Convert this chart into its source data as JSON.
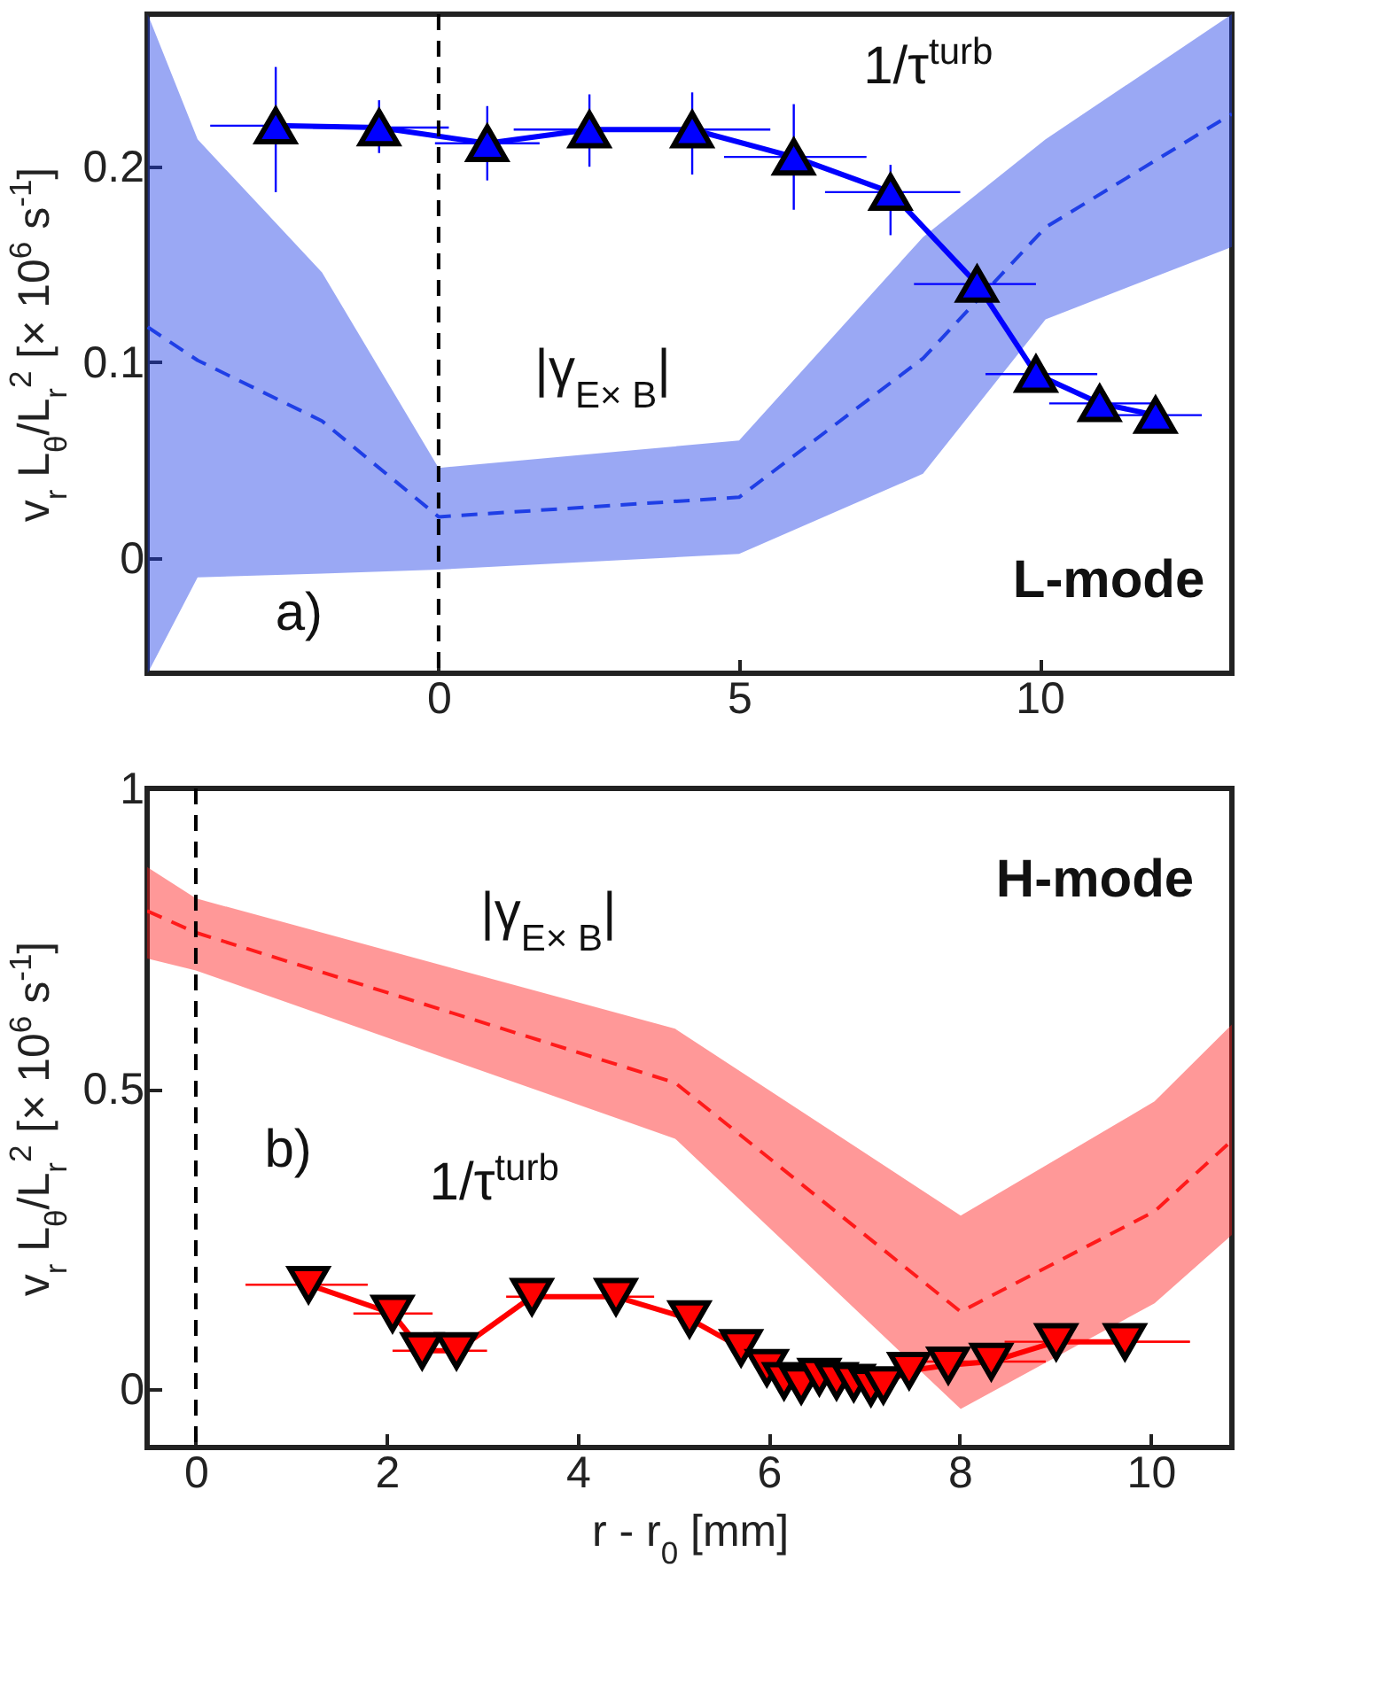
{
  "chart_data": [
    {
      "type": "line",
      "ylabel": "v$_{r}$ L$_{θ}$/L$_{r}$$^{2}$ [× 10$^{6}$ s$^{-1}$]",
      "xlim": [
        -4.85,
        13.2
      ],
      "xticks": [
        0,
        5,
        10
      ],
      "ylim": [
        -0.059,
        0.278
      ],
      "yticks": [
        0,
        0.1,
        0.2
      ],
      "grid": false,
      "annotations": [
        "a)",
        "L-mode"
      ],
      "ref_lines": [
        {
          "axis": "x",
          "value": 0,
          "color": "#000000",
          "line_style": "dashed"
        }
      ],
      "series": [
        {
          "name": "|γ$_{E× B}$|",
          "color": "#1f3fe6",
          "line_style": "dashed",
          "marker": "none",
          "x": [
            -4.84,
            -4.01,
            -1.94,
            0.0,
            5.0,
            8.06,
            10.1,
            13.2
          ],
          "values": [
            0.118,
            0.101,
            0.07,
            0.021,
            0.031,
            0.102,
            0.169,
            0.227
          ],
          "lower": [
            -0.059,
            -0.01,
            -0.008,
            -0.006,
            0.002,
            0.043,
            0.122,
            0.159
          ],
          "upper": [
            0.278,
            0.214,
            0.146,
            0.046,
            0.06,
            0.164,
            0.214,
            0.278
          ]
        },
        {
          "name": "1/τ$^{turb}$",
          "color": "#0000ff",
          "line_style": "solid",
          "marker": "triangle",
          "x": [
            -2.71,
            -0.99,
            0.81,
            2.51,
            4.22,
            5.91,
            7.52,
            8.96,
            9.94,
            11.0,
            11.93
          ],
          "values": [
            0.221,
            0.22,
            0.212,
            0.219,
            0.219,
            0.205,
            0.187,
            0.14,
            0.094,
            0.079,
            0.073
          ],
          "errors": [
            [
              0.187,
              0.251
            ],
            [
              0.207,
              0.234
            ],
            [
              0.193,
              0.231
            ],
            [
              0.2,
              0.237
            ],
            [
              0.196,
              0.238
            ],
            [
              0.178,
              0.232
            ],
            [
              0.165,
              0.201
            ],
            null,
            null,
            null,
            null
          ],
          "xerrors": [
            [
              -3.8,
              -1.65
            ],
            [
              -2.09,
              0.17
            ],
            [
              -0.06,
              1.68
            ],
            [
              1.25,
              3.71
            ],
            [
              3.13,
              5.52
            ],
            [
              4.75,
              7.12
            ],
            [
              6.43,
              8.68
            ],
            [
              7.91,
              9.94
            ],
            [
              9.1,
              10.96
            ],
            [
              10.16,
              11.86
            ],
            [
              11.25,
              12.7
            ]
          ]
        }
      ]
    },
    {
      "type": "line",
      "xlabel": "r - r$_{0}$ [mm]",
      "ylabel": "v$_{r}$ L$_{θ}$/L$_{r}$$^{2}$ [× 10$^{6}$ s$^{-1}$]",
      "xlim": [
        -0.51,
        10.85
      ],
      "xticks": [
        0,
        2,
        4,
        6,
        8,
        10
      ],
      "ylim": [
        -0.097,
        1
      ],
      "yticks": [
        0,
        0.5,
        1
      ],
      "grid": false,
      "annotations": [
        "b)",
        "H-mode"
      ],
      "ref_lines": [
        {
          "axis": "x",
          "value": 0,
          "color": "#000000",
          "line_style": "dashed"
        }
      ],
      "series": [
        {
          "name": "|γ$_{E× B}$|",
          "color": "#ff1a1a",
          "line_style": "dashed",
          "marker": "none",
          "x": [
            -0.51,
            0.0,
            5.02,
            8.01,
            10.04,
            10.85
          ],
          "values": [
            0.796,
            0.76,
            0.51,
            0.129,
            0.296,
            0.414
          ],
          "lower": [
            0.717,
            0.697,
            0.417,
            -0.033,
            0.143,
            0.257
          ],
          "upper": [
            0.869,
            0.817,
            0.6,
            0.289,
            0.479,
            0.607
          ]
        },
        {
          "name": "1/τ$^{turb}$",
          "color": "#ff0000",
          "line_style": "solid",
          "marker": "triangle-down",
          "x": [
            1.18,
            2.06,
            2.37,
            2.73,
            3.52,
            4.4,
            5.17,
            5.71,
            5.98,
            6.16,
            6.34,
            6.53,
            6.71,
            6.89,
            7.07,
            7.2,
            7.47,
            7.88,
            8.33,
            9.01,
            9.73
          ],
          "values": [
            0.174,
            0.126,
            0.064,
            0.064,
            0.154,
            0.154,
            0.117,
            0.069,
            0.036,
            0.014,
            0.007,
            0.021,
            0.014,
            0.011,
            0.003,
            0.007,
            0.031,
            0.04,
            0.046,
            0.079,
            0.079
          ],
          "xerrors": [
            [
              0.52,
              1.8
            ],
            [
              1.65,
              2.48
            ],
            null,
            [
              2.06,
              3.05
            ],
            [
              3.25,
              3.95
            ],
            [
              3.95,
              4.8
            ],
            null,
            null,
            null,
            null,
            null,
            null,
            null,
            null,
            null,
            null,
            null,
            null,
            [
              7.6,
              8.9
            ],
            [
              8.47,
              10.41
            ],
            [
              9.2,
              10.41
            ]
          ]
        }
      ]
    }
  ]
}
